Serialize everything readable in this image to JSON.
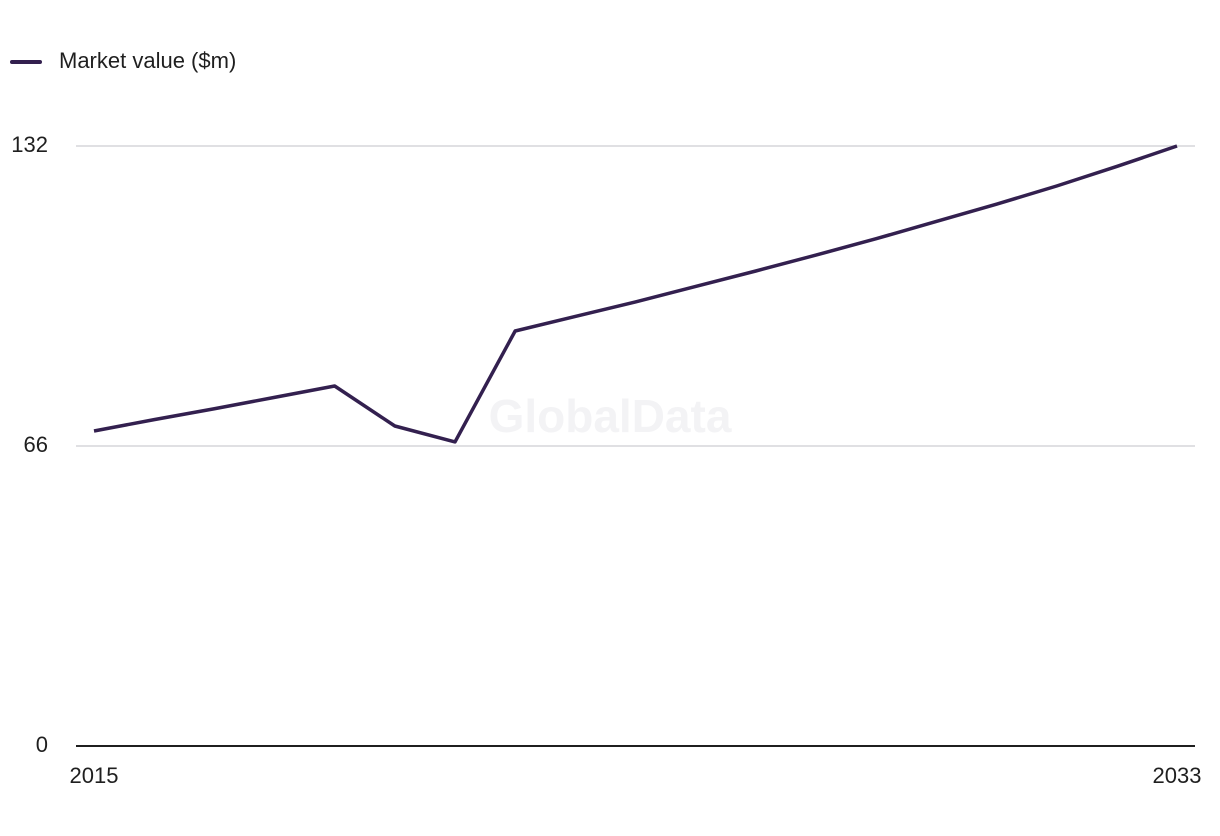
{
  "chart_data": {
    "type": "line",
    "watermark": "GlobalData",
    "x": [
      2015,
      2016,
      2017,
      2018,
      2019,
      2020,
      2021,
      2022,
      2023,
      2024,
      2025,
      2026,
      2027,
      2028,
      2029,
      2030,
      2031,
      2032,
      2033
    ],
    "series": [
      {
        "name": "Market value ($m)",
        "color": "#33204f",
        "values": [
          69.3,
          71.8,
          74.2,
          76.7,
          79.2,
          70.4,
          66.9,
          91.3,
          94.5,
          97.7,
          101.1,
          104.5,
          108.0,
          111.6,
          115.4,
          119.2,
          123.2,
          127.5,
          132
        ]
      }
    ],
    "xlim": [
      2015,
      2033
    ],
    "xticks": [
      2015,
      2033
    ],
    "ylim": [
      0,
      132
    ],
    "yticks": [
      0,
      66,
      132
    ],
    "grid": true,
    "legend": "top-left"
  }
}
